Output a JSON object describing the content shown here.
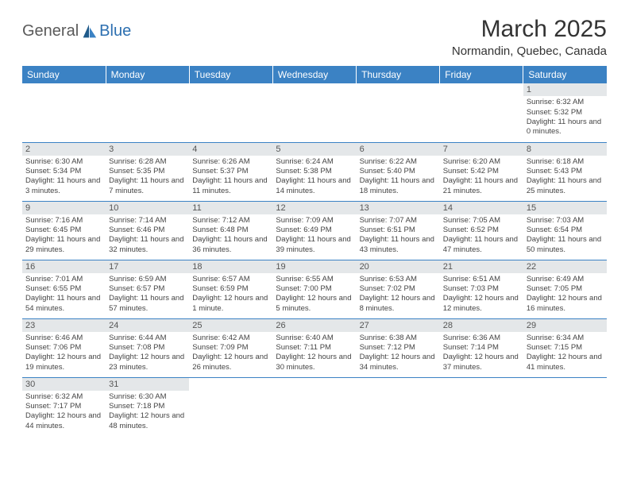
{
  "logo": {
    "general": "General",
    "blue": "Blue"
  },
  "title": "March 2025",
  "location": "Normandin, Quebec, Canada",
  "colors": {
    "header_bg": "#3b82c4",
    "header_text": "#ffffff",
    "daynum_bg": "#e4e7e9",
    "border": "#3b82c4",
    "logo_blue": "#2c6fb0",
    "logo_gray": "#5a5a5a"
  },
  "weekdays": [
    "Sunday",
    "Monday",
    "Tuesday",
    "Wednesday",
    "Thursday",
    "Friday",
    "Saturday"
  ],
  "weeks": [
    [
      {
        "n": "",
        "t": ""
      },
      {
        "n": "",
        "t": ""
      },
      {
        "n": "",
        "t": ""
      },
      {
        "n": "",
        "t": ""
      },
      {
        "n": "",
        "t": ""
      },
      {
        "n": "",
        "t": ""
      },
      {
        "n": "1",
        "t": "Sunrise: 6:32 AM\nSunset: 5:32 PM\nDaylight: 11 hours and 0 minutes."
      }
    ],
    [
      {
        "n": "2",
        "t": "Sunrise: 6:30 AM\nSunset: 5:34 PM\nDaylight: 11 hours and 3 minutes."
      },
      {
        "n": "3",
        "t": "Sunrise: 6:28 AM\nSunset: 5:35 PM\nDaylight: 11 hours and 7 minutes."
      },
      {
        "n": "4",
        "t": "Sunrise: 6:26 AM\nSunset: 5:37 PM\nDaylight: 11 hours and 11 minutes."
      },
      {
        "n": "5",
        "t": "Sunrise: 6:24 AM\nSunset: 5:38 PM\nDaylight: 11 hours and 14 minutes."
      },
      {
        "n": "6",
        "t": "Sunrise: 6:22 AM\nSunset: 5:40 PM\nDaylight: 11 hours and 18 minutes."
      },
      {
        "n": "7",
        "t": "Sunrise: 6:20 AM\nSunset: 5:42 PM\nDaylight: 11 hours and 21 minutes."
      },
      {
        "n": "8",
        "t": "Sunrise: 6:18 AM\nSunset: 5:43 PM\nDaylight: 11 hours and 25 minutes."
      }
    ],
    [
      {
        "n": "9",
        "t": "Sunrise: 7:16 AM\nSunset: 6:45 PM\nDaylight: 11 hours and 29 minutes."
      },
      {
        "n": "10",
        "t": "Sunrise: 7:14 AM\nSunset: 6:46 PM\nDaylight: 11 hours and 32 minutes."
      },
      {
        "n": "11",
        "t": "Sunrise: 7:12 AM\nSunset: 6:48 PM\nDaylight: 11 hours and 36 minutes."
      },
      {
        "n": "12",
        "t": "Sunrise: 7:09 AM\nSunset: 6:49 PM\nDaylight: 11 hours and 39 minutes."
      },
      {
        "n": "13",
        "t": "Sunrise: 7:07 AM\nSunset: 6:51 PM\nDaylight: 11 hours and 43 minutes."
      },
      {
        "n": "14",
        "t": "Sunrise: 7:05 AM\nSunset: 6:52 PM\nDaylight: 11 hours and 47 minutes."
      },
      {
        "n": "15",
        "t": "Sunrise: 7:03 AM\nSunset: 6:54 PM\nDaylight: 11 hours and 50 minutes."
      }
    ],
    [
      {
        "n": "16",
        "t": "Sunrise: 7:01 AM\nSunset: 6:55 PM\nDaylight: 11 hours and 54 minutes."
      },
      {
        "n": "17",
        "t": "Sunrise: 6:59 AM\nSunset: 6:57 PM\nDaylight: 11 hours and 57 minutes."
      },
      {
        "n": "18",
        "t": "Sunrise: 6:57 AM\nSunset: 6:59 PM\nDaylight: 12 hours and 1 minute."
      },
      {
        "n": "19",
        "t": "Sunrise: 6:55 AM\nSunset: 7:00 PM\nDaylight: 12 hours and 5 minutes."
      },
      {
        "n": "20",
        "t": "Sunrise: 6:53 AM\nSunset: 7:02 PM\nDaylight: 12 hours and 8 minutes."
      },
      {
        "n": "21",
        "t": "Sunrise: 6:51 AM\nSunset: 7:03 PM\nDaylight: 12 hours and 12 minutes."
      },
      {
        "n": "22",
        "t": "Sunrise: 6:49 AM\nSunset: 7:05 PM\nDaylight: 12 hours and 16 minutes."
      }
    ],
    [
      {
        "n": "23",
        "t": "Sunrise: 6:46 AM\nSunset: 7:06 PM\nDaylight: 12 hours and 19 minutes."
      },
      {
        "n": "24",
        "t": "Sunrise: 6:44 AM\nSunset: 7:08 PM\nDaylight: 12 hours and 23 minutes."
      },
      {
        "n": "25",
        "t": "Sunrise: 6:42 AM\nSunset: 7:09 PM\nDaylight: 12 hours and 26 minutes."
      },
      {
        "n": "26",
        "t": "Sunrise: 6:40 AM\nSunset: 7:11 PM\nDaylight: 12 hours and 30 minutes."
      },
      {
        "n": "27",
        "t": "Sunrise: 6:38 AM\nSunset: 7:12 PM\nDaylight: 12 hours and 34 minutes."
      },
      {
        "n": "28",
        "t": "Sunrise: 6:36 AM\nSunset: 7:14 PM\nDaylight: 12 hours and 37 minutes."
      },
      {
        "n": "29",
        "t": "Sunrise: 6:34 AM\nSunset: 7:15 PM\nDaylight: 12 hours and 41 minutes."
      }
    ],
    [
      {
        "n": "30",
        "t": "Sunrise: 6:32 AM\nSunset: 7:17 PM\nDaylight: 12 hours and 44 minutes."
      },
      {
        "n": "31",
        "t": "Sunrise: 6:30 AM\nSunset: 7:18 PM\nDaylight: 12 hours and 48 minutes."
      },
      {
        "n": "",
        "t": ""
      },
      {
        "n": "",
        "t": ""
      },
      {
        "n": "",
        "t": ""
      },
      {
        "n": "",
        "t": ""
      },
      {
        "n": "",
        "t": ""
      }
    ]
  ]
}
